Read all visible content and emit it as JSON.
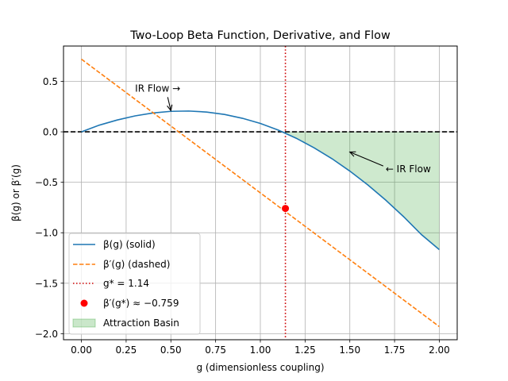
{
  "chart_data": {
    "type": "line",
    "title": "Two-Loop Beta Function, Derivative, and Flow",
    "xlabel": "g (dimensionless coupling)",
    "ylabel": "β(g) or β′(g)",
    "xlim": [
      -0.1,
      2.1
    ],
    "ylim": [
      -2.06,
      0.85
    ],
    "x_ticks": [
      0.0,
      0.25,
      0.5,
      0.75,
      1.0,
      1.25,
      1.5,
      1.75,
      2.0
    ],
    "x_tick_labels": [
      "0.00",
      "0.25",
      "0.50",
      "0.75",
      "1.00",
      "1.25",
      "1.50",
      "1.75",
      "2.00"
    ],
    "y_ticks": [
      0.5,
      0.0,
      -0.5,
      -1.0,
      -1.5,
      -2.0
    ],
    "y_tick_labels": [
      "0.5",
      "0.0",
      "−0.5",
      "−1.0",
      "−1.5",
      "−2.0"
    ],
    "grid": true,
    "legend_position": "lower-left",
    "series": [
      {
        "name": "β(g) (solid)",
        "style": "solid",
        "color": "#1f77b4",
        "x": [
          0.0,
          0.1,
          0.2,
          0.3,
          0.4,
          0.5,
          0.6,
          0.7,
          0.8,
          0.9,
          1.0,
          1.1,
          1.2,
          1.3,
          1.4,
          1.5,
          1.6,
          1.7,
          1.8,
          1.9,
          2.0
        ],
        "y": [
          0.0,
          0.066,
          0.117,
          0.158,
          0.187,
          0.203,
          0.206,
          0.196,
          0.172,
          0.134,
          0.083,
          0.017,
          -0.063,
          -0.158,
          -0.266,
          -0.389,
          -0.525,
          -0.676,
          -0.84,
          -1.018,
          -1.167
        ]
      },
      {
        "name": "β′(g) (dashed)",
        "style": "dashed",
        "color": "#ff7f0e",
        "x": [
          0.0,
          2.0
        ],
        "y": [
          0.72,
          -1.93
        ]
      }
    ],
    "vertical_line": {
      "name": "g* = 1.14",
      "x": 1.14,
      "color": "#cc0000",
      "style": "dotted"
    },
    "horizontal_line": {
      "y": 0.0,
      "color": "#000000",
      "style": "dashed"
    },
    "point": {
      "name": "β′(g*) ≈ −0.759",
      "x": 1.14,
      "y": -0.759,
      "color": "#ff0000"
    },
    "shaded_region": {
      "name": "Attraction Basin",
      "x_from": 1.14,
      "x_to": 2.0,
      "color": "#2ca02c"
    },
    "annotations": [
      {
        "text": "IR Flow →",
        "text_x": 0.3,
        "text_y": 0.43,
        "arrow_to_x": 0.5,
        "arrow_to_y": 0.21
      },
      {
        "text": "← IR Flow",
        "text_x": 1.7,
        "text_y": -0.37,
        "arrow_to_x": 1.5,
        "arrow_to_y": -0.2
      }
    ]
  }
}
